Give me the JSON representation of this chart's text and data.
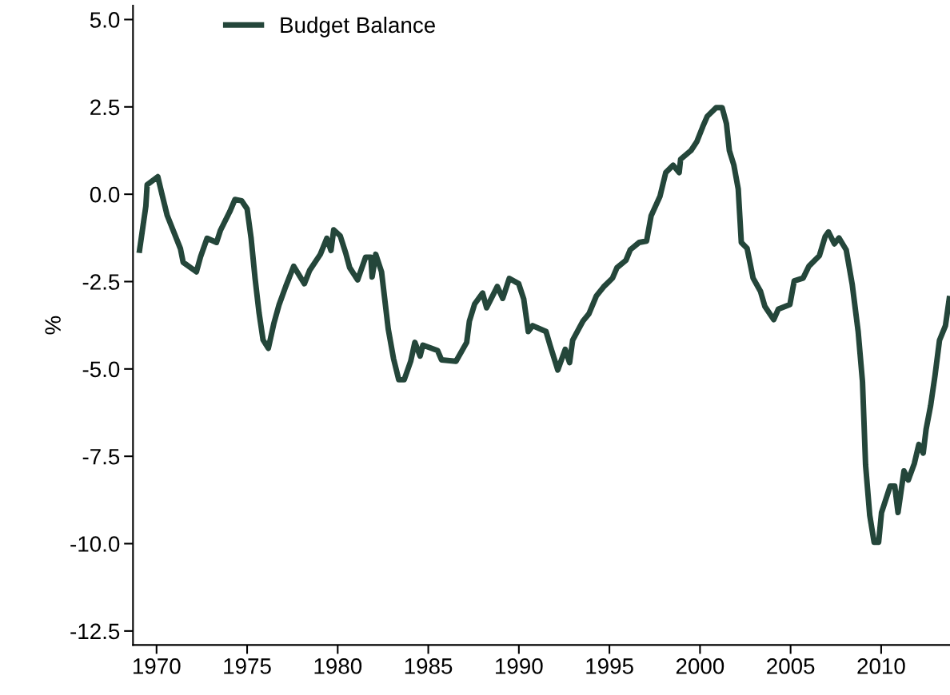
{
  "chart_data": {
    "type": "line",
    "ylabel": "%",
    "xlim": [
      1968.7,
      2013.8
    ],
    "xticks": [
      1970,
      1975,
      1980,
      1985,
      1990,
      1995,
      2000,
      2005,
      2010
    ],
    "ylim": [
      -12.9,
      5.4
    ],
    "yticks": [
      {
        "value": 5,
        "label": "5.0"
      },
      {
        "value": 2.5,
        "label": "2.5"
      },
      {
        "value": 0,
        "label": "0.0"
      },
      {
        "value": -2.5,
        "label": "-2.5"
      },
      {
        "value": -5,
        "label": "-5.0"
      },
      {
        "value": -7.5,
        "label": "-7.5"
      },
      {
        "value": -10,
        "label": "-10.0"
      },
      {
        "value": -12.5,
        "label": "-12.5"
      }
    ],
    "grid": false,
    "legend": "top left",
    "marker": "none",
    "line_style": "solid",
    "series": [
      {
        "name": "Budget Balance",
        "color": "#24463a",
        "x": [
          1969.04,
          1969.41,
          1969.48,
          1970.07,
          1970.3,
          1970.59,
          1971.32,
          1971.47,
          1972.2,
          1972.43,
          1972.79,
          1973.31,
          1973.53,
          1974.04,
          1974.33,
          1974.7,
          1975.0,
          1975.22,
          1975.44,
          1975.66,
          1975.88,
          1976.17,
          1976.47,
          1976.76,
          1977.13,
          1977.57,
          1978.16,
          1978.45,
          1979.04,
          1979.4,
          1979.63,
          1979.78,
          1980.14,
          1980.44,
          1980.66,
          1981.1,
          1981.54,
          1981.83,
          1981.9,
          1982.1,
          1982.42,
          1982.79,
          1983.08,
          1983.37,
          1983.67,
          1984.03,
          1984.26,
          1984.55,
          1984.7,
          1985.51,
          1985.73,
          1986.53,
          1987.12,
          1987.27,
          1987.56,
          1988.0,
          1988.22,
          1988.81,
          1989.11,
          1989.47,
          1989.99,
          1990.27,
          1990.52,
          1990.76,
          1991.5,
          1991.74,
          1992.15,
          1992.56,
          1992.8,
          1992.97,
          1993.54,
          1993.87,
          1994.28,
          1994.68,
          1995.17,
          1995.42,
          1995.91,
          1996.15,
          1996.64,
          1997.05,
          1997.3,
          1997.79,
          1998.11,
          1998.52,
          1998.85,
          1998.93,
          1999.5,
          1999.83,
          2000.15,
          2000.4,
          2000.89,
          2001.22,
          2001.46,
          2001.62,
          2001.87,
          2002.11,
          2002.28,
          2002.6,
          2002.93,
          2003.34,
          2003.58,
          2004.07,
          2004.32,
          2004.96,
          2005.2,
          2005.69,
          2006.01,
          2006.59,
          2006.91,
          2007.09,
          2007.42,
          2007.67,
          2008.07,
          2008.4,
          2008.73,
          2008.97,
          2009.14,
          2009.37,
          2009.61,
          2009.86,
          2010.02,
          2010.5,
          2010.75,
          2010.93,
          2011.26,
          2011.5,
          2011.83,
          2012.08,
          2012.32,
          2012.48,
          2012.73,
          2012.97,
          2013.22,
          2013.55,
          2013.78
        ],
        "values": [
          -1.68,
          -0.34,
          0.27,
          0.5,
          0.0,
          -0.61,
          -1.56,
          -1.95,
          -2.22,
          -1.79,
          -1.26,
          -1.38,
          -1.03,
          -0.5,
          -0.15,
          -0.19,
          -0.42,
          -1.26,
          -2.41,
          -3.4,
          -4.17,
          -4.41,
          -3.71,
          -3.17,
          -2.64,
          -2.06,
          -2.56,
          -2.18,
          -1.72,
          -1.26,
          -1.61,
          -1.02,
          -1.19,
          -1.68,
          -2.1,
          -2.45,
          -1.8,
          -1.8,
          -2.37,
          -1.72,
          -2.22,
          -3.86,
          -4.7,
          -5.31,
          -5.31,
          -4.78,
          -4.24,
          -4.63,
          -4.32,
          -4.47,
          -4.74,
          -4.78,
          -4.24,
          -3.63,
          -3.14,
          -2.83,
          -3.25,
          -2.64,
          -2.98,
          -2.41,
          -2.56,
          -3.0,
          -3.93,
          -3.76,
          -3.93,
          -4.35,
          -5.03,
          -4.44,
          -4.82,
          -4.18,
          -3.63,
          -3.42,
          -2.91,
          -2.65,
          -2.4,
          -2.1,
          -1.89,
          -1.59,
          -1.38,
          -1.34,
          -0.62,
          -0.06,
          0.62,
          0.83,
          0.62,
          1.0,
          1.25,
          1.51,
          1.93,
          2.23,
          2.48,
          2.48,
          2.02,
          1.25,
          0.83,
          0.15,
          -1.38,
          -1.55,
          -2.4,
          -2.78,
          -3.21,
          -3.59,
          -3.29,
          -3.16,
          -2.48,
          -2.4,
          -2.06,
          -1.76,
          -1.21,
          -1.08,
          -1.42,
          -1.25,
          -1.59,
          -2.57,
          -3.93,
          -5.37,
          -7.75,
          -9.19,
          -9.96,
          -9.96,
          -9.11,
          -8.35,
          -8.35,
          -9.11,
          -7.92,
          -8.18,
          -7.71,
          -7.16,
          -7.41,
          -6.73,
          -6.05,
          -5.2,
          -4.18,
          -3.76,
          -2.91
        ]
      }
    ]
  }
}
